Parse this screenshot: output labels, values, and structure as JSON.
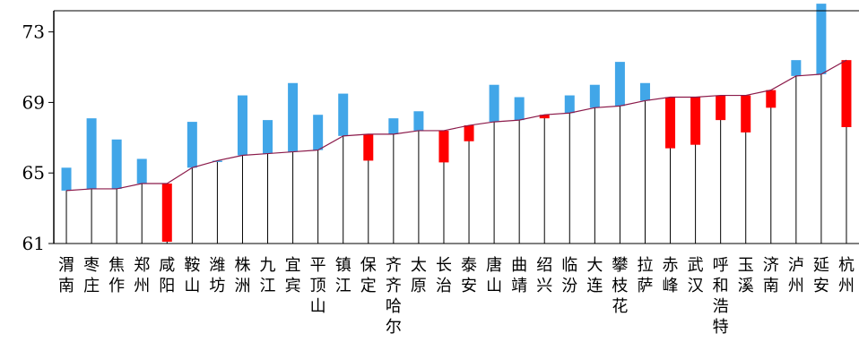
{
  "chart_data": {
    "type": "bar",
    "subtype": "waterfall",
    "title": "",
    "xlabel": "",
    "ylabel": "",
    "ylim": [
      61,
      74.2
    ],
    "yticks": [
      61,
      65,
      69,
      73
    ],
    "grid": false,
    "legend": "none",
    "colors": {
      "increase": "#41a6e8",
      "decrease": "#ff0000",
      "line": "#8b1a4a",
      "axis": "#000000"
    },
    "categories": [
      "渭南",
      "枣庄",
      "焦作",
      "郑州",
      "咸阳",
      "鞍山",
      "潍坊",
      "株洲",
      "九江",
      "宜宾",
      "平顶山",
      "镇江",
      "保定",
      "齐齐哈尔",
      "太原",
      "长治",
      "泰安",
      "唐山",
      "曲靖",
      "绍兴",
      "临汾",
      "大连",
      "攀枝花",
      "拉萨",
      "赤峰",
      "武汉",
      "呼和浩特",
      "玉溪",
      "济南",
      "泸州",
      "延安",
      "杭州"
    ],
    "values": [
      65.3,
      68.1,
      66.9,
      65.8,
      61.1,
      67.9,
      65.7,
      69.4,
      68.0,
      70.1,
      68.3,
      69.5,
      65.7,
      68.1,
      68.5,
      65.6,
      66.8,
      70.0,
      69.3,
      68.1,
      69.4,
      70.0,
      71.3,
      70.1,
      66.4,
      66.6,
      68.0,
      67.3,
      68.7,
      71.4,
      74.6,
      67.6
    ],
    "cumulative": [
      64.0,
      64.1,
      64.1,
      64.4,
      64.4,
      65.3,
      65.7,
      66.0,
      66.1,
      66.2,
      66.3,
      67.1,
      67.2,
      67.2,
      67.4,
      67.4,
      67.7,
      67.9,
      68.0,
      68.3,
      68.4,
      68.7,
      68.8,
      69.1,
      69.3,
      69.3,
      69.4,
      69.4,
      69.7,
      70.5,
      70.6,
      71.4
    ]
  }
}
